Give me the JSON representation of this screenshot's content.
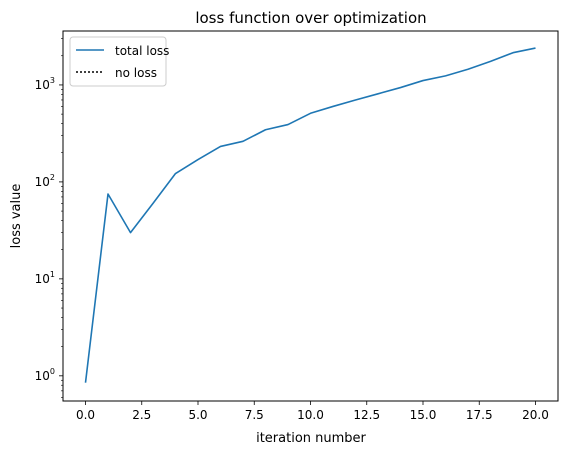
{
  "chart_data": {
    "type": "line",
    "title": "loss function over optimization",
    "xlabel": "iteration number",
    "ylabel": "loss value",
    "yscale": "log",
    "xlim": [
      -1.0,
      21.0
    ],
    "ylim": [
      0.55,
      3600
    ],
    "x_ticks": [
      0.0,
      2.5,
      5.0,
      7.5,
      10.0,
      12.5,
      15.0,
      17.5,
      20.0
    ],
    "x_tick_labels": [
      "0.0",
      "2.5",
      "5.0",
      "7.5",
      "10.0",
      "12.5",
      "15.0",
      "17.5",
      "20.0"
    ],
    "y_ticks": [
      1,
      10,
      100,
      1000
    ],
    "y_tick_labels": [
      {
        "base": "10",
        "exp": "0"
      },
      {
        "base": "10",
        "exp": "1"
      },
      {
        "base": "10",
        "exp": "2"
      },
      {
        "base": "10",
        "exp": "3"
      }
    ],
    "grid": false,
    "legend_position": "upper-left",
    "series": [
      {
        "name": "total loss",
        "color": "#1f77b4",
        "linestyle": "solid",
        "x": [
          0,
          1,
          2,
          3,
          4,
          5,
          6,
          7,
          8,
          9,
          10,
          11,
          12,
          13,
          14,
          15,
          16,
          17,
          18,
          19,
          20
        ],
        "y": [
          0.85,
          75,
          30,
          60,
          122,
          170,
          232,
          262,
          345,
          390,
          510,
          600,
          700,
          810,
          940,
          1110,
          1240,
          1450,
          1750,
          2150,
          2400
        ]
      },
      {
        "name": "no loss",
        "color": "#000000",
        "linestyle": "dotted",
        "x": [],
        "y": []
      }
    ]
  }
}
